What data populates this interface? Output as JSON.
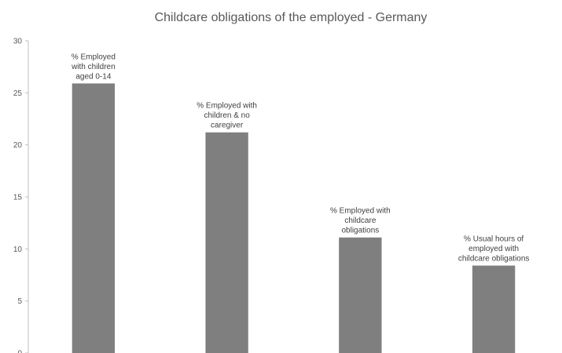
{
  "chart_data": {
    "type": "bar",
    "title": "Childcare obligations of the employed - Germany",
    "xlabel": "",
    "ylabel": "",
    "ylim": [
      0,
      30
    ],
    "yticks": [
      0,
      5,
      10,
      15,
      20,
      25,
      30
    ],
    "grid": false,
    "bar_color": "#7f7f7f",
    "categories": [
      [
        "% Employed",
        "with children",
        "aged 0-14"
      ],
      [
        "% Employed with",
        "children & no",
        "caregiver"
      ],
      [
        "% Employed with",
        "childcare",
        "obligations"
      ],
      [
        "% Usual hours of",
        "employed with",
        "childcare obligations"
      ]
    ],
    "values": [
      25.9,
      21.2,
      11.1,
      8.4
    ]
  }
}
